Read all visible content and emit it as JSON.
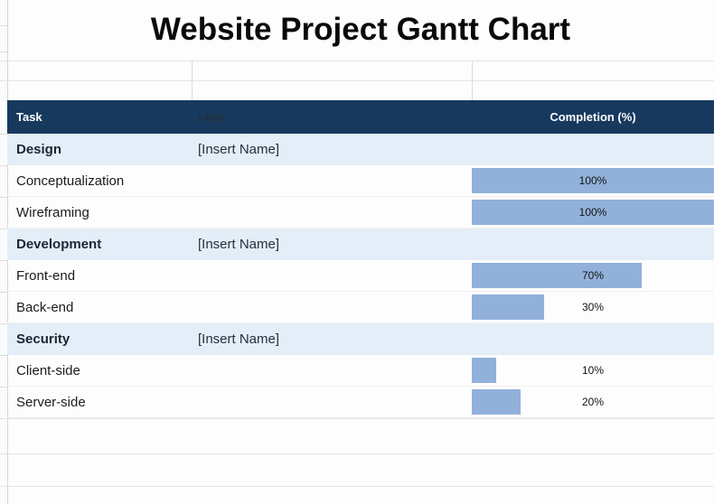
{
  "title": "Website Project Gantt Chart",
  "columns": {
    "task": "Task",
    "lead": "Lead",
    "completion": "Completion (%)"
  },
  "rows": [
    {
      "type": "group",
      "task": "Design",
      "lead": "[Insert Name]"
    },
    {
      "type": "task",
      "task": "Conceptualization",
      "lead": "",
      "completion": 100,
      "label": "100%"
    },
    {
      "type": "task",
      "task": "Wireframing",
      "lead": "",
      "completion": 100,
      "label": "100%"
    },
    {
      "type": "group",
      "task": "Development",
      "lead": "[Insert Name]"
    },
    {
      "type": "task",
      "task": "Front-end",
      "lead": "",
      "completion": 70,
      "label": "70%"
    },
    {
      "type": "task",
      "task": "Back-end",
      "lead": "",
      "completion": 30,
      "label": "30%"
    },
    {
      "type": "group",
      "task": "Security",
      "lead": "[Insert Name]"
    },
    {
      "type": "task",
      "task": "Client-side",
      "lead": "",
      "completion": 10,
      "label": "10%"
    },
    {
      "type": "task",
      "task": "Server-side",
      "lead": "",
      "completion": 20,
      "label": "20%"
    }
  ],
  "colors": {
    "header_bg": "#17395E",
    "header_text": "#FFFFFF",
    "group_row_bg": "#E4EEF8",
    "bar_fill": "#91B1DA"
  },
  "chart_data": {
    "type": "bar",
    "orientation": "horizontal",
    "title": "Website Project Gantt Chart",
    "categories": [
      "Conceptualization",
      "Wireframing",
      "Front-end",
      "Back-end",
      "Client-side",
      "Server-side"
    ],
    "values": [
      100,
      100,
      70,
      30,
      10,
      20
    ],
    "value_unit": "%",
    "xlim": [
      0,
      100
    ],
    "legend": false,
    "grid": true,
    "groups": [
      {
        "name": "Design",
        "lead": "[Insert Name]",
        "tasks": [
          "Conceptualization",
          "Wireframing"
        ]
      },
      {
        "name": "Development",
        "lead": "[Insert Name]",
        "tasks": [
          "Front-end",
          "Back-end"
        ]
      },
      {
        "name": "Security",
        "lead": "[Insert Name]",
        "tasks": [
          "Client-side",
          "Server-side"
        ]
      }
    ]
  }
}
